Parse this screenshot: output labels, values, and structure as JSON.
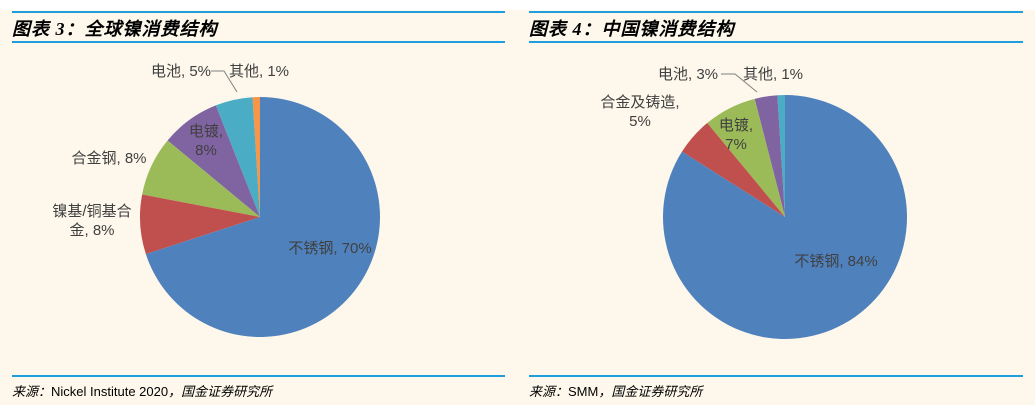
{
  "page": {
    "background_color": "#FDF8EB",
    "rule_color": "#1E9EDC",
    "label_text_color": "#404040"
  },
  "chart_data": [
    {
      "type": "pie",
      "title": "图表 3：全球镍消费结构",
      "labels": [
        "不锈钢",
        "镍基/铜基合金",
        "合金钢",
        "电镀",
        "电池",
        "其他"
      ],
      "values": [
        70,
        8,
        8,
        8,
        5,
        1
      ],
      "unit": "%",
      "colors": [
        "#4F81BD",
        "#C0504D",
        "#9BBB59",
        "#8064A2",
        "#4BACC6",
        "#F79646"
      ],
      "legend_position": "none",
      "data_labels": "category name + percent, outside or inside slices",
      "source": "来源：Nickel Institute 2020，国金证券研究所"
    },
    {
      "type": "pie",
      "title": "图表 4：中国镍消费结构",
      "labels": [
        "不锈钢",
        "合金及铸造",
        "电镀",
        "电池",
        "其他"
      ],
      "values": [
        84,
        5,
        7,
        3,
        1
      ],
      "unit": "%",
      "colors": [
        "#4F81BD",
        "#C0504D",
        "#9BBB59",
        "#8064A2",
        "#4BACC6"
      ],
      "legend_position": "none",
      "data_labels": "category name + percent, outside or inside slices",
      "source": "来源：SMM，国金证券研究所"
    }
  ],
  "panels": [
    {
      "title": "图表 3：全球镍消费结构",
      "slice_labels": {
        "stainless": "不锈钢, 70%",
        "nickel_copper": "镍基/铜基合\n金, 8%",
        "alloy_steel": "合金钢, 8%",
        "plating": "电镀,\n8%",
        "battery": "电池, 5%",
        "other": "其他, 1%"
      },
      "source_prefix": "来源：",
      "source_name": "Nickel Institute 2020",
      "source_suffix": "，国金证券研究所"
    },
    {
      "title": "图表 4：中国镍消费结构",
      "slice_labels": {
        "stainless": "不锈钢, 84%",
        "alloy_casting": "合金及铸造,\n5%",
        "plating": "电镀,\n7%",
        "battery": "电池, 3%",
        "other": "其他, 1%"
      },
      "source_prefix": "来源：",
      "source_name": "SMM",
      "source_suffix": "，国金证券研究所"
    }
  ]
}
